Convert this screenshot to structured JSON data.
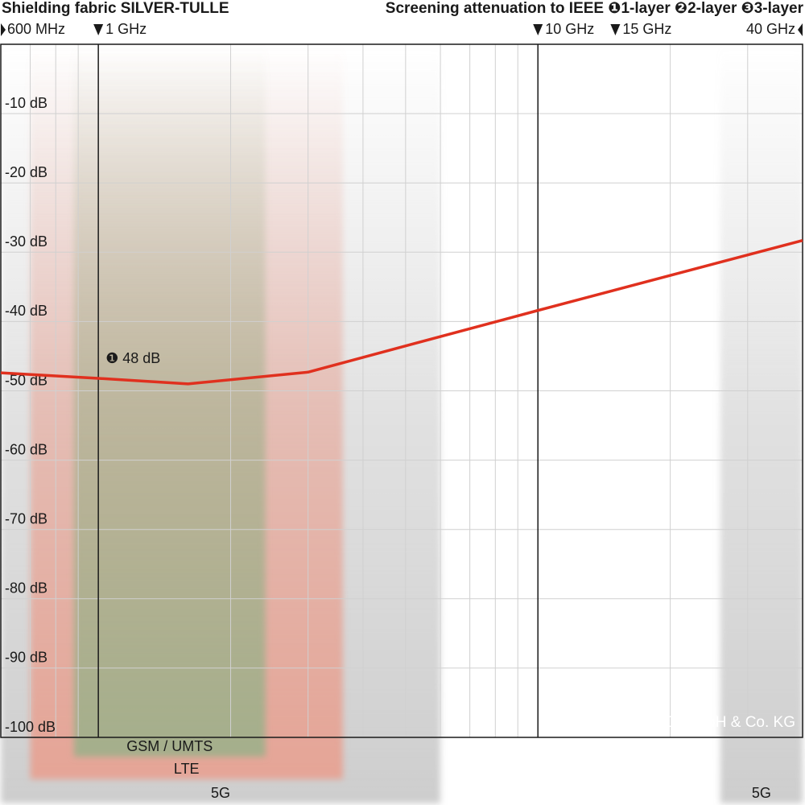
{
  "chart_data": {
    "type": "line",
    "title": "Shielding fabric SILVER-TULLE",
    "subtitle": "Screening attenuation to IEEE ❶1-layer ❷2-layer ❸3-layer",
    "log_x": true,
    "xlim": [
      0.6,
      40
    ],
    "xticks": [
      {
        "value": 0.6,
        "label": "600 MHz"
      },
      {
        "value": 1,
        "label": "1 GHz"
      },
      {
        "value": 10,
        "label": "10 GHz"
      },
      {
        "value": 15,
        "label": "15 GHz"
      },
      {
        "value": 40,
        "label": "40 GHz"
      }
    ],
    "x_major_grid": [
      1,
      10
    ],
    "x_minor_grid": [
      0.7,
      0.8,
      0.9,
      2,
      3,
      4,
      5,
      6,
      7,
      8,
      9,
      20,
      30
    ],
    "ylim": [
      -100,
      0
    ],
    "yticks": [
      {
        "value": -10,
        "label": "-10 dB"
      },
      {
        "value": -20,
        "label": "-20 dB"
      },
      {
        "value": -30,
        "label": "-30 dB"
      },
      {
        "value": -40,
        "label": "-40 dB"
      },
      {
        "value": -50,
        "label": "-50 dB"
      },
      {
        "value": -60,
        "label": "-60 dB"
      },
      {
        "value": -70,
        "label": "-70 dB"
      },
      {
        "value": -80,
        "label": "-80 dB"
      },
      {
        "value": -90,
        "label": "-90 dB"
      },
      {
        "value": -100,
        "label": "-100 dB"
      }
    ],
    "grid": true,
    "bands": [
      {
        "name": "5G",
        "from": 0.6,
        "to": 6,
        "color": "#c8c8c8",
        "level": 3
      },
      {
        "name": "5G",
        "from": 26,
        "to": 40,
        "color": "#c8c8c8",
        "level": 3
      },
      {
        "name": "LTE",
        "from": 0.7,
        "to": 3.6,
        "color": "#e8a090",
        "level": 2
      },
      {
        "name": "GSM / UMTS",
        "from": 0.88,
        "to": 2.4,
        "color": "#9db08a",
        "level": 1
      }
    ],
    "series": [
      {
        "color": "#e0301e",
        "x": [
          0.6,
          1,
          1.6,
          3,
          10,
          40
        ],
        "values": [
          -47.4,
          -48.2,
          -49,
          -47.3,
          -38.4,
          -28.3
        ]
      }
    ],
    "annotations": [
      {
        "text": "❶ 48 dB",
        "x": 1,
        "y": -48
      }
    ],
    "copyright": "© YSHIELD GmbH & Co. KG"
  }
}
